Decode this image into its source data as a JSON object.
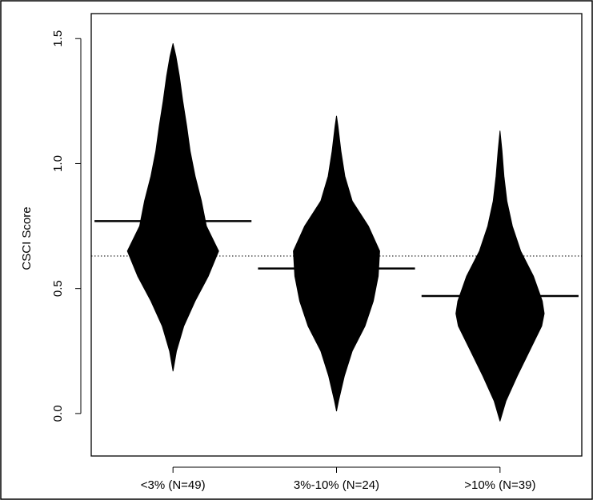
{
  "chart_data": {
    "type": "violin",
    "ylabel": "CSCI Score",
    "ylim": [
      -0.17,
      1.6
    ],
    "yticks": [
      {
        "value": 0.0,
        "label": "0.0"
      },
      {
        "value": 0.5,
        "label": "0.5"
      },
      {
        "value": 1.0,
        "label": "1.0"
      },
      {
        "value": 1.5,
        "label": "1.5"
      }
    ],
    "reference_line": {
      "value": 0.63,
      "style": "dotted"
    },
    "fill_color": "#000000",
    "groups": [
      {
        "label": "<3% (N=49)",
        "mean": 0.77,
        "range": [
          0.17,
          1.48
        ],
        "profile": [
          [
            0.17,
            0.0
          ],
          [
            0.25,
            0.07
          ],
          [
            0.35,
            0.22
          ],
          [
            0.45,
            0.45
          ],
          [
            0.55,
            0.72
          ],
          [
            0.65,
            0.93
          ],
          [
            0.75,
            0.68
          ],
          [
            0.85,
            0.58
          ],
          [
            0.95,
            0.45
          ],
          [
            1.05,
            0.35
          ],
          [
            1.15,
            0.28
          ],
          [
            1.25,
            0.2
          ],
          [
            1.35,
            0.13
          ],
          [
            1.43,
            0.06
          ],
          [
            1.48,
            0.0
          ]
        ]
      },
      {
        "label": "3%-10% (N=24)",
        "mean": 0.58,
        "range": [
          0.01,
          1.19
        ],
        "profile": [
          [
            0.01,
            0.0
          ],
          [
            0.05,
            0.04
          ],
          [
            0.15,
            0.16
          ],
          [
            0.25,
            0.32
          ],
          [
            0.35,
            0.58
          ],
          [
            0.45,
            0.75
          ],
          [
            0.55,
            0.85
          ],
          [
            0.65,
            0.88
          ],
          [
            0.75,
            0.65
          ],
          [
            0.85,
            0.32
          ],
          [
            0.95,
            0.17
          ],
          [
            1.05,
            0.09
          ],
          [
            1.15,
            0.03
          ],
          [
            1.19,
            0.0
          ]
        ]
      },
      {
        "label": ">10% (N=39)",
        "mean": 0.47,
        "range": [
          -0.03,
          1.13
        ],
        "profile": [
          [
            -0.03,
            0.0
          ],
          [
            0.05,
            0.12
          ],
          [
            0.15,
            0.35
          ],
          [
            0.25,
            0.6
          ],
          [
            0.35,
            0.85
          ],
          [
            0.4,
            0.9
          ],
          [
            0.45,
            0.86
          ],
          [
            0.55,
            0.68
          ],
          [
            0.65,
            0.42
          ],
          [
            0.75,
            0.25
          ],
          [
            0.85,
            0.14
          ],
          [
            0.95,
            0.08
          ],
          [
            1.05,
            0.04
          ],
          [
            1.13,
            0.0
          ]
        ]
      }
    ]
  }
}
